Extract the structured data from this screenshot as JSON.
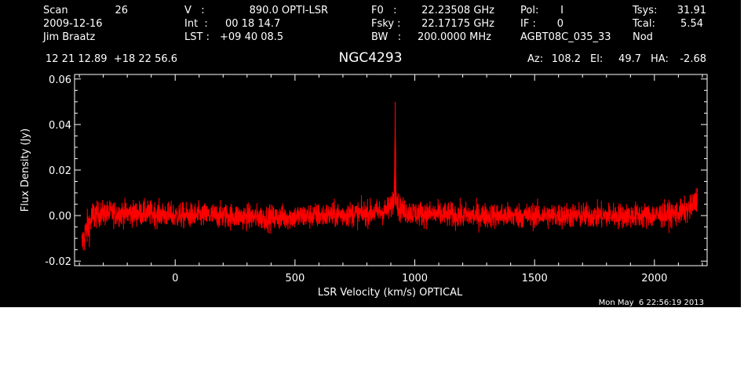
{
  "header": {
    "scan_label": "Scan",
    "scan_value": "26",
    "date": "2009-12-16",
    "observer": "Jim Braatz",
    "v_label": "V   :",
    "v_value": "890.0 OPTI-LSR",
    "int_label": "Int  :",
    "int_value": "00 18 14.7",
    "lst_label": "LST :",
    "lst_value": "+09 40 08.5",
    "f0_label": "F0   :",
    "f0_value": "22.23508 GHz",
    "fsky_label": "Fsky :",
    "fsky_value": "22.17175 GHz",
    "bw_label": "BW   :",
    "bw_value": "200.0000 MHz",
    "pol_label": "Pol:",
    "pol_value": "I",
    "if_label": "IF :",
    "if_value": "0",
    "project": "AGBT08C_035_33",
    "tsys_label": "Tsys:",
    "tsys_value": "31.91",
    "tcal_label": "Tcal:",
    "tcal_value": "5.54",
    "mode": "Nod",
    "coords": "12 21 12.89  +18 22 56.6",
    "source": "NGC4293",
    "az_label": "Az:",
    "az_value": "108.2",
    "el_label": "El:",
    "el_value": "49.7",
    "ha_label": "HA:",
    "ha_value": "-2.68",
    "timestamp": "Mon May  6 22:56:19 2013"
  },
  "chart_data": {
    "type": "line",
    "title": "NGC4293",
    "xlabel": "LSR Velocity (km/s) OPTICAL",
    "ylabel": "Flux Density (Jy)",
    "xlim": [
      -420,
      2220
    ],
    "ylim": [
      -0.022,
      0.062
    ],
    "xticks": [
      0,
      500,
      1000,
      1500,
      2000
    ],
    "xtick_labels": [
      "0",
      "500",
      "1000",
      "1500",
      "2000"
    ],
    "yticks": [
      -0.02,
      0.0,
      0.02,
      0.04,
      0.06
    ],
    "ytick_labels": [
      "-0.02",
      "0.00",
      "0.02",
      "0.04",
      "0.06"
    ],
    "grid": false,
    "series": [
      {
        "color": "#ff0000",
        "x": [
          -390,
          -375,
          -360,
          -340,
          -300,
          -200,
          -100,
          0,
          200,
          400,
          600,
          800,
          880,
          900,
          910,
          915,
          918,
          921,
          925,
          935,
          960,
          1000,
          1200,
          1400,
          1600,
          1800,
          2000,
          2100,
          2150,
          2170,
          2180
        ],
        "y": [
          -0.013,
          -0.008,
          -0.004,
          0.0,
          0.001,
          0.001,
          0.001,
          0.0,
          0.0,
          -0.001,
          0.0,
          0.001,
          0.002,
          0.004,
          0.007,
          0.012,
          0.049,
          0.015,
          0.006,
          0.003,
          0.002,
          0.001,
          0.0,
          0.0,
          0.0,
          0.0,
          0.0,
          0.001,
          0.003,
          0.006,
          0.009
        ]
      }
    ]
  }
}
